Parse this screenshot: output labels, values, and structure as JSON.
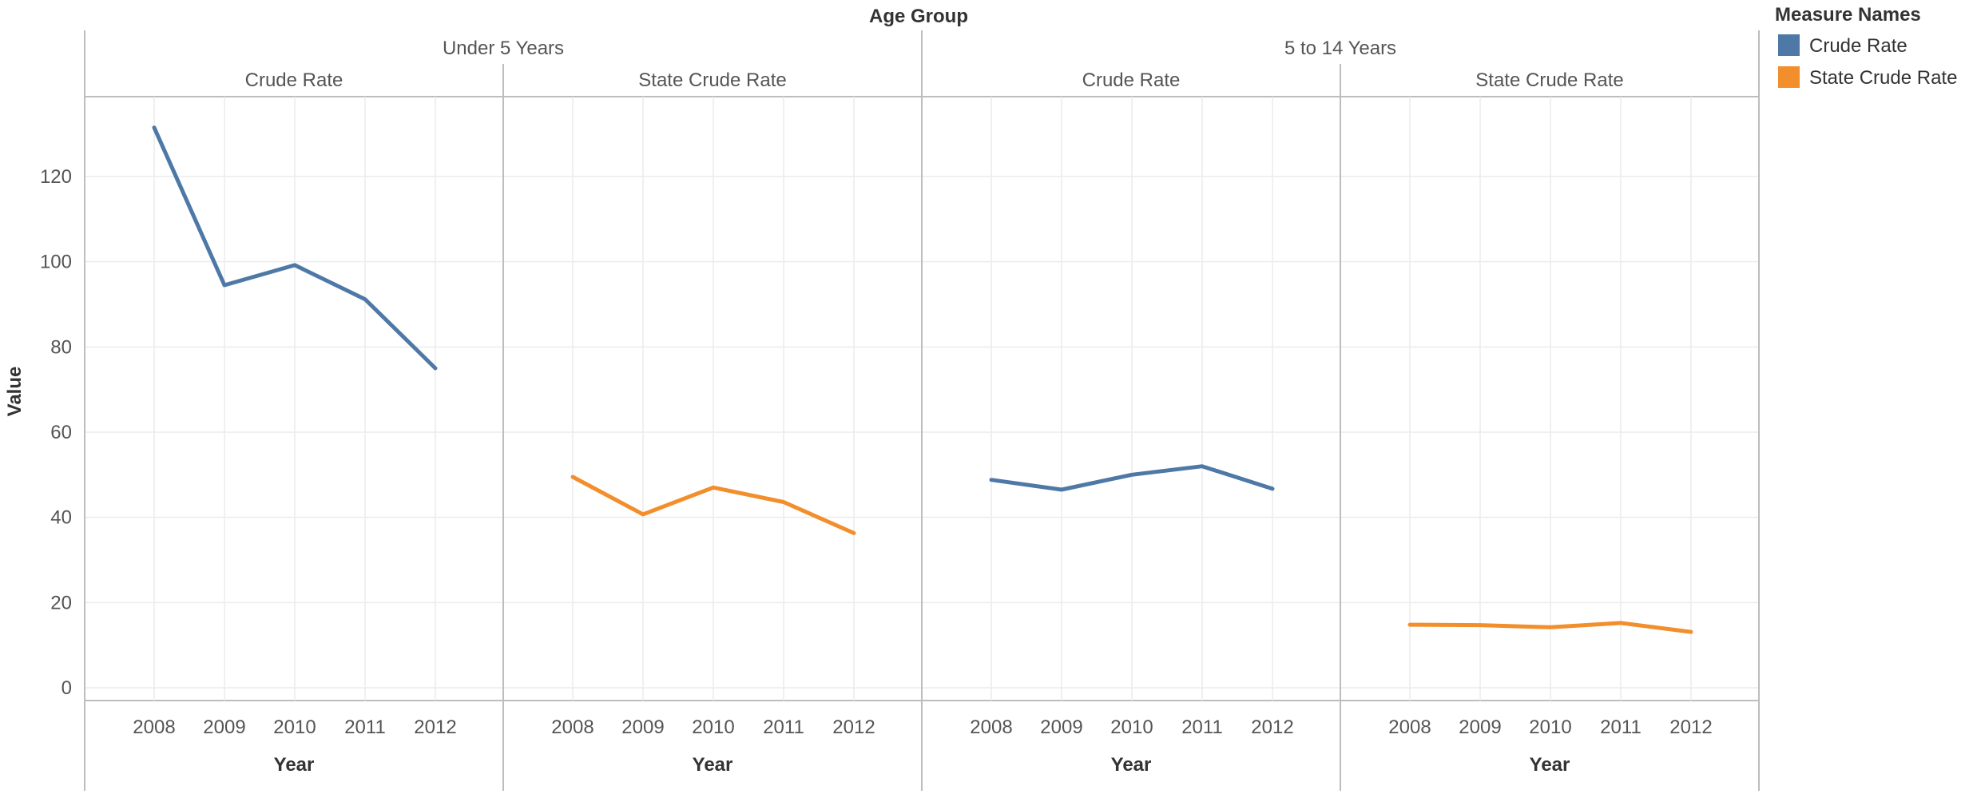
{
  "header": {
    "column_title": "Age Group",
    "y_axis_title": "Value"
  },
  "legend": {
    "title": "Measure Names",
    "placement": "top-right",
    "items": [
      {
        "label": "Crude Rate",
        "color": "#4e79a7"
      },
      {
        "label": "State Crude Rate",
        "color": "#f28e2b"
      }
    ]
  },
  "chart_data": {
    "type": "line",
    "title": "",
    "group_header": "Age Group",
    "ylabel": "Value",
    "xlabel": "Year",
    "ylim": [
      0,
      140
    ],
    "yticks": [
      0,
      20,
      40,
      60,
      80,
      100,
      120
    ],
    "grid": true,
    "groups": [
      "Under 5 Years",
      "5 to 14 Years"
    ],
    "panels": [
      {
        "group": "Under 5 Years",
        "measure": "Crude Rate",
        "color": "#4e79a7",
        "x": [
          2008,
          2009,
          2010,
          2011,
          2012
        ],
        "values": [
          131.5,
          94.5,
          99.2,
          91.2,
          75.0
        ]
      },
      {
        "group": "Under 5 Years",
        "measure": "State Crude Rate",
        "color": "#f28e2b",
        "x": [
          2008,
          2009,
          2010,
          2011,
          2012
        ],
        "values": [
          49.5,
          40.7,
          47.0,
          43.6,
          36.3
        ]
      },
      {
        "group": "5 to 14 Years",
        "measure": "Crude Rate",
        "color": "#4e79a7",
        "x": [
          2008,
          2009,
          2010,
          2011,
          2012
        ],
        "values": [
          48.8,
          46.5,
          50.0,
          52.0,
          46.7
        ]
      },
      {
        "group": "5 to 14 Years",
        "measure": "State Crude Rate",
        "color": "#f28e2b",
        "x": [
          2008,
          2009,
          2010,
          2011,
          2012
        ],
        "values": [
          14.8,
          14.7,
          14.2,
          15.2,
          13.1
        ]
      }
    ]
  }
}
